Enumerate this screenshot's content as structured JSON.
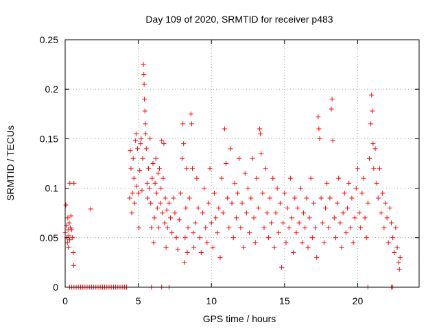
{
  "chart_data": {
    "type": "scatter",
    "title": "Day 109 of 2020, SRMTID for receiver p483",
    "xlabel": "GPS time / hours",
    "ylabel": "SRMTID / TECUs",
    "xlim": [
      0,
      24.2
    ],
    "ylim": [
      0,
      0.25
    ],
    "xticks": [
      0,
      5,
      10,
      15,
      20
    ],
    "xtick_labels": [
      "0",
      "5",
      "10",
      "15",
      "20"
    ],
    "yticks": [
      0,
      0.05,
      0.1,
      0.15,
      0.2,
      0.25
    ],
    "ytick_labels": [
      "0",
      "0.05",
      "0.1",
      "0.15",
      "0.2",
      "0.25"
    ],
    "grid": true,
    "series": [
      {
        "name": "SRMTID",
        "marker": "+",
        "color": "#ff0000",
        "points": [
          [
            0.0,
            0.055
          ],
          [
            0.05,
            0.083
          ],
          [
            0.1,
            0.062
          ],
          [
            0.12,
            0.05
          ],
          [
            0.15,
            0.045
          ],
          [
            0.18,
            0.07
          ],
          [
            0.2,
            0.058
          ],
          [
            0.22,
            0.04
          ],
          [
            0.25,
            0.052
          ],
          [
            0.28,
            0.065
          ],
          [
            0.3,
            0.048
          ],
          [
            0.32,
            0.105
          ],
          [
            0.35,
            0.06
          ],
          [
            0.4,
            0.072
          ],
          [
            0.45,
            0.058
          ],
          [
            0.5,
            0.05
          ],
          [
            0.55,
            0.035
          ],
          [
            0.58,
            0.022
          ],
          [
            0.6,
            0.105
          ],
          [
            0.3,
            0.0
          ],
          [
            0.45,
            0.0
          ],
          [
            0.6,
            0.0
          ],
          [
            0.75,
            0.0
          ],
          [
            0.9,
            0.0
          ],
          [
            1.05,
            0.0
          ],
          [
            1.2,
            0.0
          ],
          [
            1.35,
            0.0
          ],
          [
            1.5,
            0.0
          ],
          [
            1.65,
            0.0
          ],
          [
            1.8,
            0.0
          ],
          [
            1.95,
            0.0
          ],
          [
            2.1,
            0.0
          ],
          [
            2.25,
            0.0
          ],
          [
            2.4,
            0.0
          ],
          [
            2.55,
            0.0
          ],
          [
            2.7,
            0.0
          ],
          [
            2.85,
            0.0
          ],
          [
            3.0,
            0.0
          ],
          [
            3.15,
            0.0
          ],
          [
            3.3,
            0.0
          ],
          [
            3.45,
            0.0
          ],
          [
            3.6,
            0.0
          ],
          [
            3.75,
            0.0
          ],
          [
            3.9,
            0.0
          ],
          [
            4.05,
            0.0
          ],
          [
            4.2,
            0.0
          ],
          [
            5.9,
            0.0
          ],
          [
            6.6,
            0.0
          ],
          [
            7.1,
            0.0
          ],
          [
            20.7,
            0.0
          ],
          [
            22.3,
            0.0
          ],
          [
            22.4,
            0.0
          ],
          [
            1.75,
            0.079
          ],
          [
            4.4,
            0.09
          ],
          [
            4.45,
            0.138
          ],
          [
            4.5,
            0.12
          ],
          [
            4.55,
            0.075
          ],
          [
            4.6,
            0.095
          ],
          [
            4.65,
            0.13
          ],
          [
            4.7,
            0.11
          ],
          [
            4.75,
            0.085
          ],
          [
            4.8,
            0.148
          ],
          [
            4.85,
            0.155
          ],
          [
            4.9,
            0.102
          ],
          [
            4.95,
            0.14
          ],
          [
            5.0,
            0.095
          ],
          [
            5.05,
            0.06
          ],
          [
            5.1,
            0.118
          ],
          [
            5.15,
            0.145
          ],
          [
            5.2,
            0.15
          ],
          [
            5.25,
            0.098
          ],
          [
            5.3,
            0.13
          ],
          [
            5.35,
            0.225
          ],
          [
            5.38,
            0.215
          ],
          [
            5.4,
            0.205
          ],
          [
            5.42,
            0.19
          ],
          [
            5.45,
            0.178
          ],
          [
            5.48,
            0.165
          ],
          [
            5.5,
            0.155
          ],
          [
            5.55,
            0.14
          ],
          [
            5.6,
            0.105
          ],
          [
            5.65,
            0.09
          ],
          [
            5.7,
            0.12
          ],
          [
            5.75,
            0.1
          ],
          [
            5.8,
            0.15
          ],
          [
            5.85,
            0.085
          ],
          [
            5.9,
            0.06
          ],
          [
            5.95,
            0.11
          ],
          [
            6.0,
            0.125
          ],
          [
            6.05,
            0.045
          ],
          [
            6.1,
            0.07
          ],
          [
            6.15,
            0.105
          ],
          [
            6.2,
            0.13
          ],
          [
            6.25,
            0.095
          ],
          [
            6.3,
            0.08
          ],
          [
            6.35,
            0.115
          ],
          [
            6.4,
            0.06
          ],
          [
            6.45,
            0.12
          ],
          [
            6.5,
            0.085
          ],
          [
            6.55,
            0.1
          ],
          [
            6.6,
            0.148
          ],
          [
            6.65,
            0.075
          ],
          [
            6.7,
            0.11
          ],
          [
            6.75,
            0.145
          ],
          [
            6.8,
            0.065
          ],
          [
            6.85,
            0.09
          ],
          [
            6.9,
            0.04
          ],
          [
            6.95,
            0.078
          ],
          [
            7.0,
            0.06
          ],
          [
            7.1,
            0.085
          ],
          [
            7.2,
            0.07
          ],
          [
            7.3,
            0.055
          ],
          [
            7.4,
            0.09
          ],
          [
            7.5,
            0.075
          ],
          [
            7.6,
            0.05
          ],
          [
            7.7,
            0.038
          ],
          [
            7.8,
            0.068
          ],
          [
            7.9,
            0.095
          ],
          [
            8.0,
            0.13
          ],
          [
            8.05,
            0.165
          ],
          [
            8.1,
            0.145
          ],
          [
            8.15,
            0.025
          ],
          [
            8.2,
            0.05
          ],
          [
            8.25,
            0.08
          ],
          [
            8.3,
            0.12
          ],
          [
            8.35,
            0.035
          ],
          [
            8.4,
            0.06
          ],
          [
            8.5,
            0.09
          ],
          [
            8.6,
            0.175
          ],
          [
            8.65,
            0.165
          ],
          [
            8.7,
            0.12
          ],
          [
            8.75,
            0.055
          ],
          [
            8.8,
            0.04
          ],
          [
            8.9,
            0.065
          ],
          [
            9.0,
            0.11
          ],
          [
            9.1,
            0.08
          ],
          [
            9.2,
            0.05
          ],
          [
            9.3,
            0.035
          ],
          [
            9.4,
            0.075
          ],
          [
            9.5,
            0.1
          ],
          [
            9.6,
            0.06
          ],
          [
            9.7,
            0.045
          ],
          [
            9.8,
            0.085
          ],
          [
            9.9,
            0.12
          ],
          [
            10.0,
            0.065
          ],
          [
            10.1,
            0.04
          ],
          [
            10.2,
            0.095
          ],
          [
            10.3,
            0.07
          ],
          [
            10.4,
            0.055
          ],
          [
            10.5,
            0.08
          ],
          [
            10.6,
            0.03
          ],
          [
            10.7,
            0.11
          ],
          [
            10.8,
            0.075
          ],
          [
            10.9,
            0.16
          ],
          [
            11.0,
            0.125
          ],
          [
            11.1,
            0.09
          ],
          [
            11.2,
            0.06
          ],
          [
            11.3,
            0.14
          ],
          [
            11.4,
            0.085
          ],
          [
            11.5,
            0.05
          ],
          [
            11.6,
            0.105
          ],
          [
            11.7,
            0.07
          ],
          [
            11.8,
            0.095
          ],
          [
            11.9,
            0.13
          ],
          [
            12.0,
            0.06
          ],
          [
            12.1,
            0.085
          ],
          [
            12.2,
            0.04
          ],
          [
            12.3,
            0.115
          ],
          [
            12.4,
            0.075
          ],
          [
            12.5,
            0.1
          ],
          [
            12.6,
            0.055
          ],
          [
            12.7,
            0.09
          ],
          [
            12.8,
            0.13
          ],
          [
            12.9,
            0.07
          ],
          [
            13.0,
            0.045
          ],
          [
            13.1,
            0.11
          ],
          [
            13.2,
            0.08
          ],
          [
            13.3,
            0.16
          ],
          [
            13.35,
            0.155
          ],
          [
            13.4,
            0.135
          ],
          [
            13.5,
            0.095
          ],
          [
            13.6,
            0.06
          ],
          [
            13.7,
            0.12
          ],
          [
            13.8,
            0.075
          ],
          [
            13.9,
            0.05
          ],
          [
            14.0,
            0.09
          ],
          [
            14.1,
            0.065
          ],
          [
            14.2,
            0.11
          ],
          [
            14.3,
            0.04
          ],
          [
            14.4,
            0.075
          ],
          [
            14.5,
            0.1
          ],
          [
            14.6,
            0.055
          ],
          [
            14.7,
            0.085
          ],
          [
            14.8,
            0.02
          ],
          [
            14.9,
            0.065
          ],
          [
            15.0,
            0.095
          ],
          [
            15.1,
            0.045
          ],
          [
            15.2,
            0.08
          ],
          [
            15.3,
            0.06
          ],
          [
            15.4,
            0.11
          ],
          [
            15.5,
            0.07
          ],
          [
            15.6,
            0.035
          ],
          [
            15.7,
            0.09
          ],
          [
            15.8,
            0.055
          ],
          [
            15.9,
            0.08
          ],
          [
            16.0,
            0.065
          ],
          [
            16.1,
            0.1
          ],
          [
            16.2,
            0.045
          ],
          [
            16.3,
            0.075
          ],
          [
            16.4,
            0.06
          ],
          [
            16.5,
            0.09
          ],
          [
            16.6,
            0.04
          ],
          [
            16.7,
            0.07
          ],
          [
            16.8,
            0.11
          ],
          [
            16.9,
            0.05
          ],
          [
            17.0,
            0.085
          ],
          [
            17.1,
            0.06
          ],
          [
            17.2,
            0.03
          ],
          [
            17.3,
            0.172
          ],
          [
            17.35,
            0.16
          ],
          [
            17.4,
            0.15
          ],
          [
            17.5,
            0.09
          ],
          [
            17.6,
            0.065
          ],
          [
            17.7,
            0.045
          ],
          [
            17.8,
            0.08
          ],
          [
            17.9,
            0.105
          ],
          [
            18.0,
            0.06
          ],
          [
            18.1,
            0.09
          ],
          [
            18.2,
            0.18
          ],
          [
            18.25,
            0.19
          ],
          [
            18.3,
            0.148
          ],
          [
            18.4,
            0.07
          ],
          [
            18.5,
            0.05
          ],
          [
            18.6,
            0.085
          ],
          [
            18.7,
            0.11
          ],
          [
            18.8,
            0.065
          ],
          [
            18.9,
            0.04
          ],
          [
            19.0,
            0.075
          ],
          [
            19.1,
            0.095
          ],
          [
            19.2,
            0.055
          ],
          [
            19.3,
            0.08
          ],
          [
            19.4,
            0.105
          ],
          [
            19.5,
            0.06
          ],
          [
            19.6,
            0.09
          ],
          [
            19.7,
            0.045
          ],
          [
            19.8,
            0.07
          ],
          [
            19.9,
            0.1
          ],
          [
            20.0,
            0.12
          ],
          [
            20.1,
            0.075
          ],
          [
            20.2,
            0.06
          ],
          [
            20.3,
            0.095
          ],
          [
            20.4,
            0.11
          ],
          [
            20.5,
            0.07
          ],
          [
            20.6,
            0.05
          ],
          [
            20.7,
            0.085
          ],
          [
            20.8,
            0.13
          ],
          [
            20.9,
            0.165
          ],
          [
            20.95,
            0.194
          ],
          [
            21.0,
            0.178
          ],
          [
            21.05,
            0.145
          ],
          [
            21.1,
            0.12
          ],
          [
            21.2,
            0.14
          ],
          [
            21.3,
            0.105
          ],
          [
            21.4,
            0.09
          ],
          [
            21.5,
            0.12
          ],
          [
            21.6,
            0.075
          ],
          [
            21.7,
            0.095
          ],
          [
            21.8,
            0.06
          ],
          [
            21.9,
            0.085
          ],
          [
            22.0,
            0.07
          ],
          [
            22.1,
            0.045
          ],
          [
            22.2,
            0.08
          ],
          [
            22.3,
            0.065
          ],
          [
            22.4,
            0.05
          ],
          [
            22.5,
            0.035
          ],
          [
            22.6,
            0.06
          ],
          [
            22.7,
            0.04
          ],
          [
            22.8,
            0.025
          ],
          [
            22.85,
            0.018
          ],
          [
            22.9,
            0.03
          ]
        ]
      }
    ]
  }
}
